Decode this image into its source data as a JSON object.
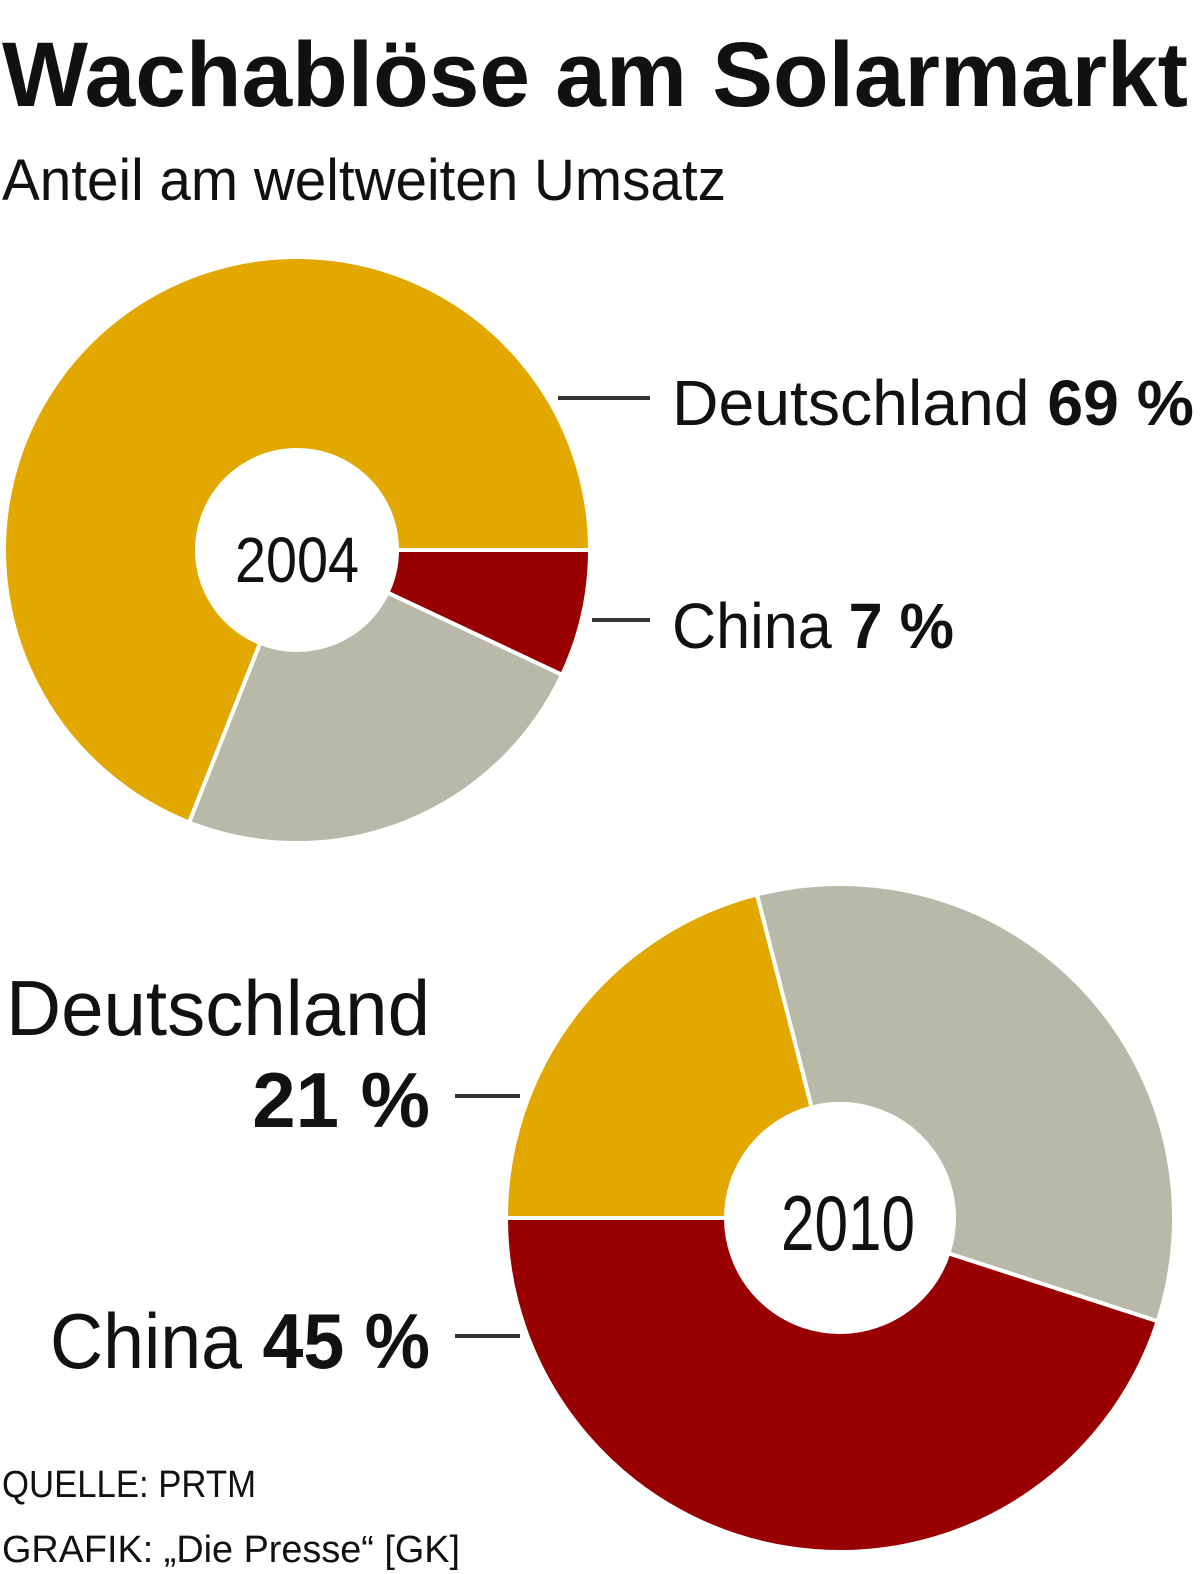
{
  "title": "Wachablöse am Solarmarkt",
  "subtitle": "Anteil am weltweiten Umsatz",
  "source": "QUELLE: PRTM",
  "credit": "GRAFIK: „Die Presse“ [GK]",
  "chart_data": [
    {
      "type": "pie",
      "center_label": "2004",
      "categories": [
        "Deutschland",
        null,
        "China"
      ],
      "values": [
        69,
        24,
        7
      ],
      "value_labels": [
        "69 %",
        null,
        "7 %"
      ],
      "colors": [
        "#e2a800",
        "#b8b9a9",
        "#990000"
      ]
    },
    {
      "type": "pie",
      "center_label": "2010",
      "categories": [
        "China",
        null,
        "Deutschland"
      ],
      "values": [
        45,
        34,
        21
      ],
      "value_labels": [
        "45 %",
        null,
        "21 %"
      ],
      "colors": [
        "#990000",
        "#b8b9a9",
        "#e2a800"
      ]
    }
  ]
}
